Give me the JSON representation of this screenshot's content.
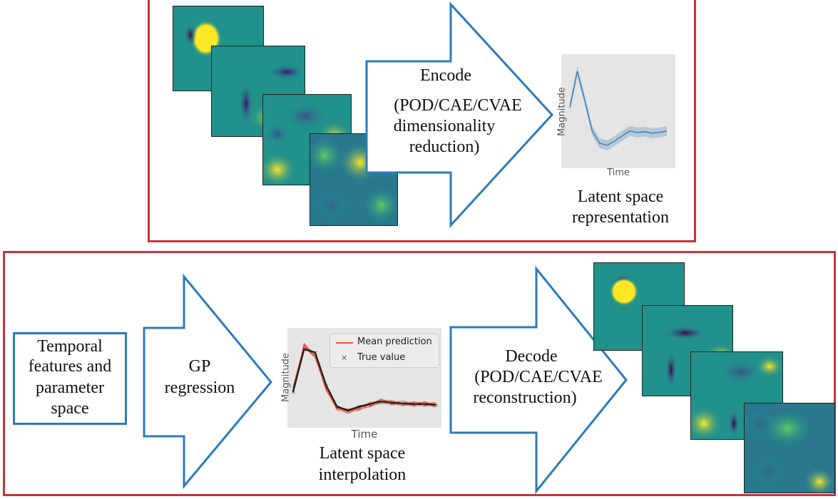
{
  "top": {
    "encode_label": "Encode",
    "encode_detail_1": "(POD/CAE/CVAE",
    "encode_detail_2": "dimensionality",
    "encode_detail_3": "reduction)",
    "latent_caption_1": "Latent space",
    "latent_caption_2": "representation",
    "plot_xlabel": "Time",
    "plot_ylabel": "Magnitude"
  },
  "bottom": {
    "input_1": "Temporal",
    "input_2": "features and",
    "input_3": "parameter",
    "input_4": "space",
    "gp_1": "GP",
    "gp_2": "regression",
    "interp_caption_1": "Latent space",
    "interp_caption_2": "interpolation",
    "plot_xlabel": "Time",
    "plot_ylabel": "Magnitude",
    "legend_mean": "Mean prediction",
    "legend_true": "True value",
    "decode_label": "Decode",
    "decode_detail_1": "(POD/CAE/CVAE",
    "decode_detail_2": "reconstruction)"
  },
  "colors": {
    "frame_red": "#c8323c",
    "arrow_blue": "#2b7bba",
    "viridis_bg": "#21918c",
    "viridis_yellow": "#fde725",
    "viridis_purple": "#440154",
    "mean_line": "#e8543a",
    "latent_line": "#3a7fb8"
  },
  "chart_data": [
    {
      "type": "line",
      "title": "",
      "xlabel": "Time",
      "ylabel": "Magnitude",
      "grid": false,
      "series": [
        {
          "values": [
            0.45,
            0.95,
            0.55,
            0.12,
            -0.05,
            -0.08,
            -0.02,
            0.05,
            0.12,
            0.1,
            0.11,
            0.09,
            0.1,
            0.12
          ]
        }
      ]
    },
    {
      "type": "line",
      "title": "",
      "xlabel": "Time",
      "ylabel": "Magnitude",
      "grid": false,
      "legend": "top-right",
      "series": [
        {
          "name": "Mean prediction",
          "values": [
            0.3,
            0.95,
            0.8,
            0.3,
            0.0,
            -0.05,
            0.0,
            0.05,
            0.1,
            0.08,
            0.07,
            0.06,
            0.06,
            0.05
          ]
        },
        {
          "name": "True value",
          "values": [
            0.25,
            0.9,
            0.85,
            0.35,
            0.02,
            -0.04,
            0.02,
            0.06,
            0.1,
            0.08,
            0.07,
            0.06,
            0.06,
            0.05
          ]
        }
      ]
    }
  ]
}
